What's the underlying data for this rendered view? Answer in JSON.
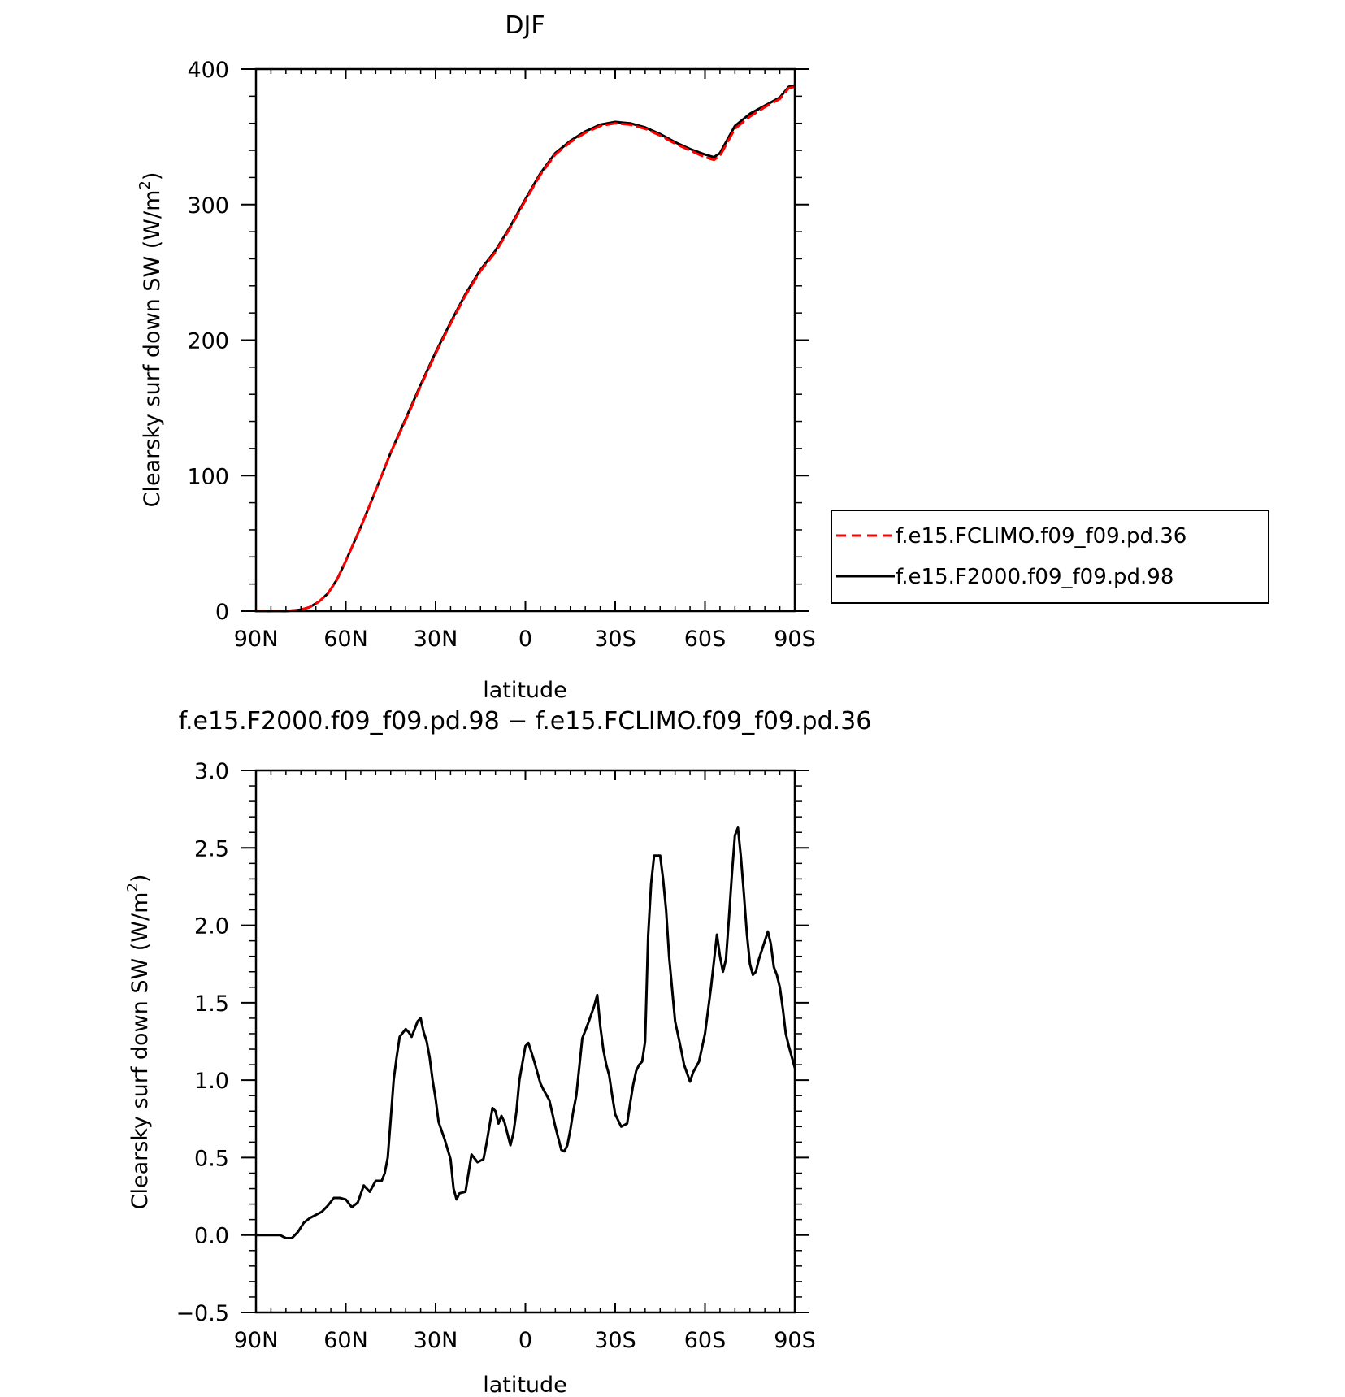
{
  "chart_data": [
    {
      "type": "line",
      "title": "DJF",
      "xlabel": "latitude",
      "ylabel": "Clearsky surf down SW (W/m",
      "ylabel_sup": "2",
      "ylabel_close": ")",
      "xlim": [
        90,
        -90
      ],
      "ylim": [
        0,
        400
      ],
      "x_ticks": [
        90,
        60,
        30,
        0,
        -30,
        -60,
        -90
      ],
      "x_tick_labels": [
        "90N",
        "60N",
        "30N",
        "0",
        "30S",
        "60S",
        "90S"
      ],
      "y_ticks": [
        0,
        100,
        200,
        300,
        400
      ],
      "y_tick_labels": [
        "0",
        "100",
        "200",
        "300",
        "400"
      ],
      "legend_position": "right",
      "grid": false,
      "series": [
        {
          "name": "f.e15.FCLIMO.f09_f09.pd.36",
          "color": "#ff0000",
          "dash": "dashed",
          "x": [
            90,
            80,
            75,
            72,
            69,
            66,
            63,
            60,
            55,
            50,
            45,
            40,
            35,
            30,
            25,
            20,
            15,
            10,
            5,
            0,
            -5,
            -10,
            -15,
            -20,
            -25,
            -30,
            -35,
            -40,
            -45,
            -50,
            -55,
            -60,
            -63,
            -65,
            -67,
            -70,
            -75,
            -80,
            -85,
            -88,
            -90
          ],
          "y": [
            0,
            0,
            1,
            3,
            7,
            13,
            23,
            37,
            62,
            89,
            117,
            141,
            166,
            190,
            212,
            233,
            251,
            265,
            283,
            303,
            322,
            337,
            346,
            353,
            358,
            360,
            359,
            356,
            351,
            345,
            340,
            335,
            333,
            336,
            344,
            356,
            365,
            372,
            378,
            386,
            387
          ]
        },
        {
          "name": "f.e15.F2000.f09_f09.pd.98",
          "color": "#000000",
          "dash": "solid",
          "x": [
            90,
            80,
            75,
            72,
            69,
            66,
            63,
            60,
            55,
            50,
            45,
            40,
            35,
            30,
            25,
            20,
            15,
            10,
            5,
            0,
            -5,
            -10,
            -15,
            -20,
            -25,
            -30,
            -35,
            -40,
            -45,
            -50,
            -55,
            -60,
            -63,
            -65,
            -67,
            -70,
            -75,
            -80,
            -85,
            -88,
            -90
          ],
          "y": [
            0,
            0,
            1,
            3,
            7,
            13,
            23,
            37,
            62,
            89,
            117,
            142,
            167,
            191,
            213,
            234,
            252,
            266,
            284,
            304,
            323,
            338,
            347,
            354,
            359,
            361,
            360,
            357,
            352,
            346,
            341,
            337,
            335,
            338,
            346,
            358,
            367,
            373,
            379,
            387,
            388
          ]
        }
      ]
    },
    {
      "type": "line",
      "title": "f.e15.F2000.f09_f09.pd.98 − f.e15.FCLIMO.f09_f09.pd.36",
      "xlabel": "latitude",
      "ylabel": "Clearsky surf down SW (W/m",
      "ylabel_sup": "2",
      "ylabel_close": ")",
      "xlim": [
        90,
        -90
      ],
      "ylim": [
        -0.5,
        3.0
      ],
      "x_ticks": [
        90,
        60,
        30,
        0,
        -30,
        -60,
        -90
      ],
      "x_tick_labels": [
        "90N",
        "60N",
        "30N",
        "0",
        "30S",
        "60S",
        "90S"
      ],
      "y_ticks": [
        -0.5,
        0.0,
        0.5,
        1.0,
        1.5,
        2.0,
        2.5,
        3.0
      ],
      "y_tick_labels": [
        "−0.5",
        "0.0",
        "0.5",
        "1.0",
        "1.5",
        "2.0",
        "2.5",
        "3.0"
      ],
      "grid": false,
      "series": [
        {
          "color": "#000000",
          "dash": "solid",
          "x": [
            90,
            82,
            80,
            78,
            76,
            74,
            72,
            70,
            68,
            66,
            64,
            62,
            60,
            58,
            56,
            54,
            52,
            50,
            48,
            47,
            46,
            45,
            44,
            43,
            42,
            40,
            39,
            38,
            37,
            36,
            35,
            34,
            33,
            32,
            31,
            30,
            29,
            27,
            25,
            24,
            23,
            22,
            20,
            19,
            18,
            16,
            14,
            13,
            11,
            10,
            9,
            8,
            7,
            5,
            4,
            3,
            2,
            0,
            -1,
            -2,
            -3,
            -4,
            -5,
            -6,
            -8,
            -10,
            -12,
            -13,
            -14,
            -15,
            -16,
            -17,
            -19,
            -21,
            -23,
            -24,
            -25,
            -26,
            -27,
            -28,
            -29,
            -30,
            -32,
            -34,
            -35,
            -36,
            -37,
            -38,
            -39,
            -40,
            -41,
            -42,
            -43,
            -45,
            -46,
            -47,
            -48,
            -50,
            -52,
            -53,
            -55,
            -56,
            -58,
            -60,
            -62,
            -64,
            -65,
            -66,
            -67,
            -68,
            -69,
            -70,
            -71,
            -72,
            -73,
            -74,
            -75,
            -76,
            -77,
            -78,
            -80,
            -81,
            -82,
            -83,
            -84,
            -85,
            -86,
            -87,
            -88,
            -89,
            -90
          ],
          "y": [
            0.0,
            0.0,
            -0.02,
            -0.02,
            0.02,
            0.08,
            0.11,
            0.13,
            0.15,
            0.19,
            0.24,
            0.24,
            0.23,
            0.18,
            0.21,
            0.32,
            0.28,
            0.35,
            0.35,
            0.4,
            0.5,
            0.75,
            1.0,
            1.15,
            1.28,
            1.33,
            1.31,
            1.28,
            1.33,
            1.38,
            1.4,
            1.31,
            1.25,
            1.15,
            1.0,
            0.88,
            0.73,
            0.62,
            0.49,
            0.3,
            0.23,
            0.27,
            0.28,
            0.4,
            0.52,
            0.47,
            0.49,
            0.59,
            0.82,
            0.8,
            0.72,
            0.77,
            0.73,
            0.58,
            0.66,
            0.8,
            1.0,
            1.22,
            1.24,
            1.18,
            1.12,
            1.05,
            0.98,
            0.94,
            0.87,
            0.7,
            0.55,
            0.54,
            0.58,
            0.68,
            0.8,
            0.9,
            1.27,
            1.37,
            1.48,
            1.55,
            1.35,
            1.2,
            1.1,
            1.03,
            0.9,
            0.78,
            0.7,
            0.72,
            0.85,
            0.97,
            1.06,
            1.1,
            1.12,
            1.25,
            1.93,
            2.27,
            2.45,
            2.45,
            2.3,
            2.1,
            1.8,
            1.38,
            1.2,
            1.1,
            0.99,
            1.05,
            1.12,
            1.3,
            1.6,
            1.94,
            1.8,
            1.7,
            1.78,
            2.05,
            2.33,
            2.58,
            2.63,
            2.44,
            2.2,
            1.94,
            1.75,
            1.68,
            1.7,
            1.78,
            1.9,
            1.96,
            1.88,
            1.73,
            1.68,
            1.6,
            1.46,
            1.3,
            1.22,
            1.15,
            1.08
          ]
        }
      ]
    }
  ]
}
